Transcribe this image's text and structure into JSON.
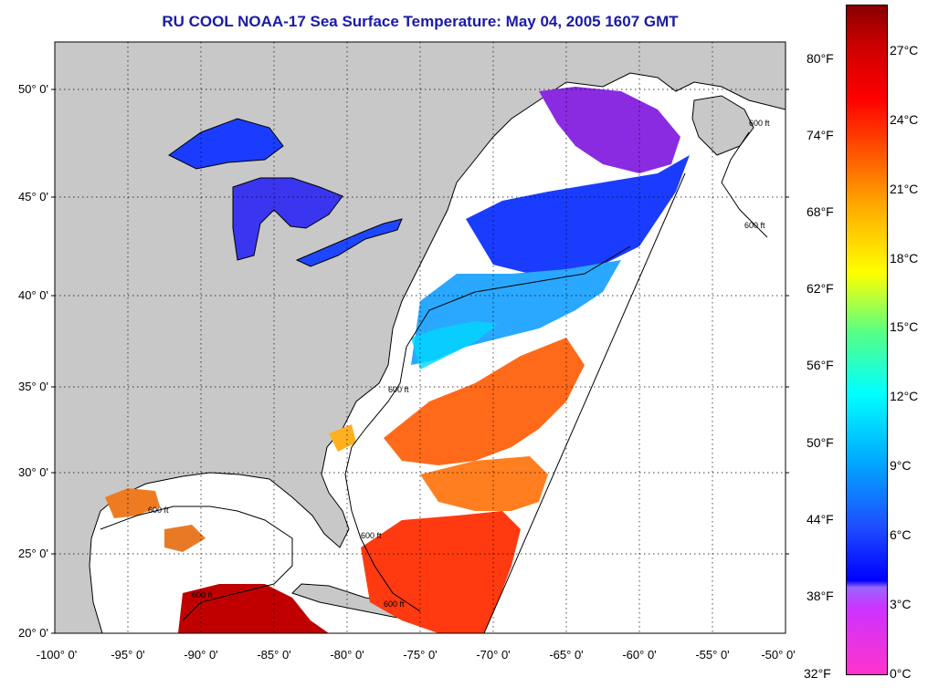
{
  "title": "RU COOL  NOAA-17  Sea Surface Temperature:  May 04, 2005 1607 GMT",
  "lat_labels": [
    "50° 0'",
    "45° 0'",
    "40° 0'",
    "35° 0'",
    "30° 0'",
    "25° 0'",
    "20° 0'"
  ],
  "lon_labels": [
    "-100° 0'",
    "-95° 0'",
    "-90° 0'",
    "-85° 0'",
    "-80° 0'",
    "-75° 0'",
    "-70° 0'",
    "-65° 0'",
    "-60° 0'",
    "-55° 0'",
    "-50° 0'"
  ],
  "fahrenheit_labels": [
    "80°F",
    "74°F",
    "68°F",
    "62°F",
    "56°F",
    "50°F",
    "44°F",
    "38°F",
    "32°F"
  ],
  "celsius_labels": [
    "27°C",
    "24°C",
    "21°C",
    "18°C",
    "15°C",
    "12°C",
    "9°C",
    "6°C",
    "3°C",
    "0°C"
  ],
  "contour_labels": [
    "600 ft",
    "600 ft",
    "600 ft",
    "600 ft",
    "600 ft",
    "600 ft",
    "600 ft"
  ],
  "colors": {
    "land": "#c8c8c8",
    "ocean_nodata": "#ffffff",
    "title": "#1a1aa8"
  }
}
